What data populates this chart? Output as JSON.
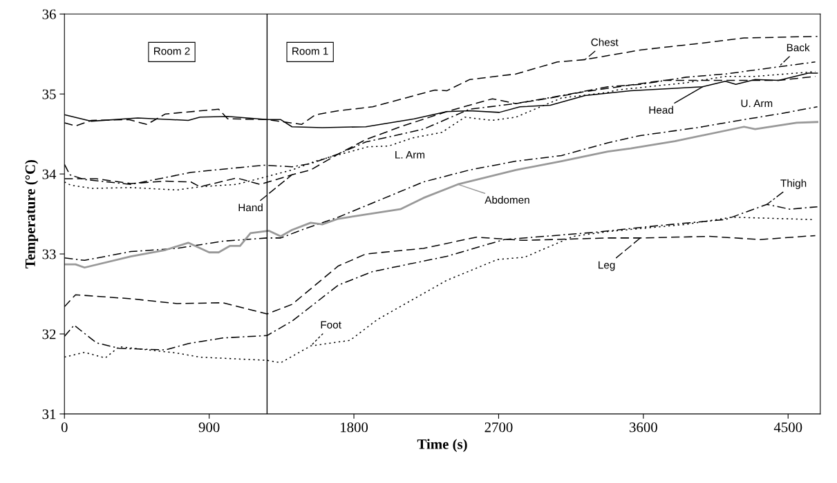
{
  "chart_data": {
    "type": "line",
    "xlabel": "Time (s)",
    "ylabel": "Temperature (°C)",
    "xlim": [
      0,
      4700
    ],
    "ylim": [
      31,
      36
    ],
    "xticks": [
      0,
      900,
      1800,
      2700,
      3600,
      4500
    ],
    "yticks": [
      31,
      32,
      33,
      34,
      35,
      36
    ],
    "grid": false,
    "legend": false,
    "marker": "none",
    "annotations": [
      "Room 2",
      "Room 1"
    ],
    "ref_lines": [
      {
        "axis": "x",
        "value": 1260,
        "color": "#000000",
        "line_style": "solid"
      }
    ],
    "series": [
      {
        "name": "Chest",
        "color": "#000000",
        "line_style": "dashed",
        "x": [
          0,
          69,
          168,
          400,
          512,
          628,
          959,
          1015,
          1260,
          1475,
          1561,
          1703,
          1917,
          2304,
          2377,
          2519,
          2807,
          3065,
          3237,
          3581,
          3938,
          4226,
          4682
        ],
        "values": [
          34.64,
          34.6,
          34.67,
          34.68,
          34.62,
          34.75,
          34.81,
          34.69,
          34.68,
          34.62,
          34.74,
          34.79,
          34.84,
          35.05,
          35.04,
          35.18,
          35.25,
          35.4,
          35.43,
          35.55,
          35.63,
          35.7,
          35.72
        ]
      },
      {
        "name": "Back",
        "color": "#000000",
        "line_style": "dashdot",
        "x": [
          0,
          34,
          125,
          413,
          787,
          985,
          1243,
          1415,
          1531,
          1703,
          1874,
          2232,
          2519,
          2807,
          3091,
          3379,
          3581,
          3865,
          4110,
          4441,
          4669
        ],
        "values": [
          34.12,
          33.99,
          33.93,
          33.87,
          34.02,
          34.06,
          34.11,
          34.09,
          34.13,
          34.25,
          34.4,
          34.56,
          34.81,
          34.88,
          34.98,
          35.09,
          35.12,
          35.21,
          35.25,
          35.34,
          35.4
        ]
      },
      {
        "name": "Head",
        "color": "#000000",
        "line_style": "solid",
        "x": [
          0,
          168,
          456,
          770,
          843,
          1015,
          1260,
          1345,
          1415,
          1603,
          1874,
          2175,
          2377,
          2519,
          2704,
          2833,
          3022,
          3237,
          3521,
          3796,
          3968,
          4110,
          4175,
          4295,
          4441,
          4626,
          4682
        ],
        "values": [
          34.74,
          34.66,
          34.7,
          34.67,
          34.71,
          34.72,
          34.68,
          34.68,
          34.59,
          34.58,
          34.59,
          34.69,
          34.78,
          34.79,
          34.77,
          34.84,
          34.86,
          34.98,
          35.04,
          35.07,
          35.09,
          35.16,
          35.12,
          35.18,
          35.17,
          35.26,
          35.26
        ]
      },
      {
        "name": "L. Arm",
        "color": "#000000",
        "line_style": "dotted",
        "x": [
          0,
          39,
          168,
          413,
          701,
          843,
          1071,
          1243,
          1415,
          1561,
          1888,
          2017,
          2163,
          2347,
          2490,
          2661,
          2807,
          3091,
          3379,
          3436,
          3865,
          4110,
          4295,
          4669
        ],
        "values": [
          33.9,
          33.86,
          33.82,
          33.83,
          33.8,
          33.84,
          33.87,
          33.96,
          34.05,
          34.16,
          34.34,
          34.35,
          34.45,
          34.52,
          34.71,
          34.67,
          34.71,
          34.95,
          35.02,
          35.05,
          35.14,
          35.22,
          35.22,
          35.28
        ]
      },
      {
        "name": "Hand",
        "color": "#000000",
        "line_style": "dashed",
        "x": [
          0,
          198,
          413,
          628,
          787,
          843,
          1071,
          1217,
          1415,
          1531,
          1703,
          1874,
          2089,
          2377,
          2661,
          2807,
          3022,
          3237,
          3723,
          4153,
          4441,
          4669
        ],
        "values": [
          33.94,
          33.94,
          33.88,
          33.91,
          33.9,
          33.84,
          33.95,
          33.87,
          33.99,
          34.05,
          34.25,
          34.43,
          34.59,
          34.78,
          34.94,
          34.88,
          34.95,
          35.03,
          35.17,
          35.17,
          35.17,
          35.22
        ]
      },
      {
        "name": "U. Arm",
        "color": "#000000",
        "line_style": "dashdot",
        "x": [
          0,
          125,
          413,
          701,
          985,
          1260,
          1345,
          1488,
          1703,
          2232,
          2519,
          2807,
          3091,
          3379,
          3581,
          3938,
          4226,
          4441,
          4682
        ],
        "values": [
          32.95,
          32.92,
          33.03,
          33.07,
          33.16,
          33.2,
          33.2,
          33.31,
          33.46,
          33.9,
          34.05,
          34.16,
          34.23,
          34.39,
          34.48,
          34.58,
          34.68,
          34.75,
          34.84
        ]
      },
      {
        "name": "Abdomen",
        "color": "#999999",
        "line_style": "solid",
        "x": [
          0,
          69,
          125,
          413,
          628,
          770,
          900,
          959,
          1028,
          1092,
          1157,
          1272,
          1345,
          1415,
          1531,
          1603,
          1703,
          2089,
          2232,
          2446,
          2807,
          3091,
          3379,
          3521,
          3796,
          4226,
          4295,
          4553,
          4682
        ],
        "values": [
          32.87,
          32.87,
          32.83,
          32.97,
          33.05,
          33.14,
          33.02,
          33.02,
          33.1,
          33.1,
          33.26,
          33.29,
          33.22,
          33.3,
          33.39,
          33.37,
          33.44,
          33.56,
          33.7,
          33.87,
          34.05,
          34.16,
          34.28,
          34.32,
          34.41,
          34.59,
          34.56,
          34.64,
          34.65
        ]
      },
      {
        "name": "Thigh",
        "color": "#000000",
        "line_style": "dashdot",
        "x": [
          0,
          60,
          198,
          340,
          628,
          770,
          985,
          1260,
          1415,
          1703,
          1917,
          2377,
          2734,
          3293,
          3723,
          4110,
          4368,
          4510,
          4682
        ],
        "values": [
          31.97,
          32.11,
          31.89,
          31.82,
          31.8,
          31.88,
          31.95,
          31.98,
          32.16,
          32.61,
          32.78,
          32.97,
          33.18,
          33.27,
          33.36,
          33.43,
          33.62,
          33.56,
          33.59
        ]
      },
      {
        "name": "Leg",
        "color": "#000000",
        "line_style": "dashed",
        "x": [
          0,
          69,
          413,
          701,
          985,
          1260,
          1415,
          1703,
          1874,
          2232,
          2562,
          2850,
          3379,
          3581,
          4011,
          4325,
          4669
        ],
        "values": [
          32.34,
          32.49,
          32.44,
          32.38,
          32.39,
          32.25,
          32.37,
          32.85,
          33.0,
          33.07,
          33.21,
          33.17,
          33.2,
          33.2,
          33.22,
          33.18,
          33.23
        ]
      },
      {
        "name": "Foot",
        "color": "#000000",
        "line_style": "dotted",
        "x": [
          0,
          125,
          254,
          340,
          701,
          843,
          1260,
          1345,
          1531,
          1776,
          1946,
          2377,
          2691,
          2863,
          3164,
          3379,
          3865,
          4153,
          4656
        ],
        "values": [
          31.71,
          31.77,
          31.7,
          31.84,
          31.76,
          31.71,
          31.67,
          31.64,
          31.85,
          31.92,
          32.18,
          32.67,
          32.93,
          32.96,
          33.22,
          33.28,
          33.37,
          33.46,
          33.43
        ]
      }
    ]
  }
}
